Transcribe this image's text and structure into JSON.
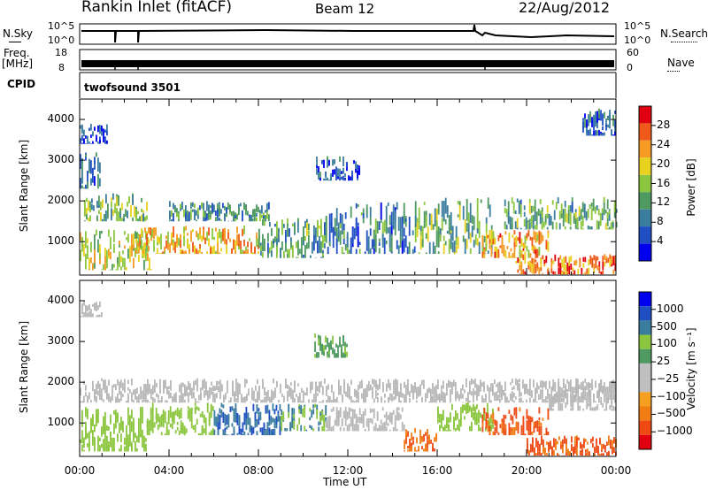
{
  "header": {
    "station": "Rankin Inlet (fitACF)",
    "beam": "Beam 12",
    "date": "22/Aug/2012"
  },
  "status_panels": {
    "nsky": {
      "label": "N.Sky",
      "ticks": [
        "10^5",
        "10^0"
      ]
    },
    "nsearch": {
      "label": "N.Search",
      "ticks": [
        "10^5",
        "10^0"
      ]
    },
    "freq": {
      "label_line1": "Freq.",
      "label_line2": "[MHz]",
      "ticks": [
        "18",
        "8"
      ]
    },
    "nave": {
      "label": "Nave",
      "ticks": [
        "60",
        "0"
      ]
    },
    "cpid": {
      "label": "CPID",
      "value": "twofsound 3501"
    }
  },
  "colors": {
    "power_scale": [
      "#0000ee",
      "#1f4fc2",
      "#3b7d9e",
      "#4f9a60",
      "#8cc63f",
      "#e8d21f",
      "#f59a23",
      "#ef5a1a",
      "#e0000f"
    ],
    "velocity_scale": [
      "#e00010",
      "#ef4a14",
      "#f27d14",
      "#f5a020",
      "#bfbfbf",
      "#bfbfbf",
      "#4f9a60",
      "#8cc63f",
      "#3b7d9e",
      "#1f4fc2",
      "#0000ee"
    ],
    "ground_scatter": "#b8b8b8"
  },
  "chart_data": [
    {
      "type": "heatmap",
      "name": "power",
      "ylabel": "Slant Range [km]",
      "colorbar_label": "Power [dB]",
      "colorbar_ticks": [
        "28",
        "24",
        "20",
        "16",
        "12",
        "8",
        "4"
      ],
      "colorbar_range": [
        0,
        32
      ],
      "ylim": [
        180,
        4500
      ],
      "yticks": [
        "1000",
        "2000",
        "3000",
        "4000"
      ],
      "x_time_range_hours": [
        0,
        24
      ],
      "regions": [
        {
          "t0": 0.0,
          "t1": 3.2,
          "r0": 300,
          "r1": 1300,
          "v": 18
        },
        {
          "t0": 0.2,
          "t1": 3.0,
          "r0": 1500,
          "r1": 2200,
          "v": 14
        },
        {
          "t0": 0.0,
          "t1": 1.0,
          "r0": 2300,
          "r1": 3200,
          "v": 9
        },
        {
          "t0": 0.0,
          "t1": 1.2,
          "r0": 3400,
          "r1": 3900,
          "v": 5
        },
        {
          "t0": 2.5,
          "t1": 8.0,
          "r0": 700,
          "r1": 1400,
          "v": 22
        },
        {
          "t0": 4.0,
          "t1": 8.5,
          "r0": 1500,
          "r1": 2000,
          "v": 11
        },
        {
          "t0": 8.0,
          "t1": 11.0,
          "r0": 600,
          "r1": 1600,
          "v": 12
        },
        {
          "t0": 10.5,
          "t1": 12.5,
          "r0": 2500,
          "r1": 3100,
          "v": 6
        },
        {
          "t0": 11.0,
          "t1": 15.0,
          "r0": 700,
          "r1": 2000,
          "v": 9
        },
        {
          "t0": 15.0,
          "t1": 18.5,
          "r0": 700,
          "r1": 2100,
          "v": 14
        },
        {
          "t0": 18.0,
          "t1": 21.0,
          "r0": 600,
          "r1": 1300,
          "v": 23
        },
        {
          "t0": 19.5,
          "t1": 24.0,
          "r0": 200,
          "r1": 700,
          "v": 25
        },
        {
          "t0": 19.0,
          "t1": 24.0,
          "r0": 1300,
          "r1": 2100,
          "v": 13
        },
        {
          "t0": 22.5,
          "t1": 24.0,
          "r0": 3600,
          "r1": 4300,
          "v": 7
        }
      ]
    },
    {
      "type": "heatmap",
      "name": "velocity",
      "ylabel": "Slant Range [km]",
      "colorbar_label": "Velocity [m s⁻¹]",
      "colorbar_ticks": [
        "1000",
        "500",
        "100",
        "25",
        "−25",
        "−100",
        "−500",
        "−1000"
      ],
      "colorbar_range": [
        -1200,
        1200
      ],
      "ylim": [
        180,
        4500
      ],
      "yticks": [
        "1000",
        "2000",
        "3000",
        "4000"
      ],
      "xlabel": "Time UT",
      "xticks": [
        "00:00",
        "04:00",
        "08:00",
        "12:00",
        "16:00",
        "20:00",
        "00:00"
      ],
      "x_time_range_hours": [
        0,
        24
      ],
      "regions": [
        {
          "t0": 0.0,
          "t1": 3.0,
          "r0": 300,
          "r1": 1400,
          "v": 150,
          "gs": false
        },
        {
          "t0": 0.0,
          "t1": 24.0,
          "r0": 1500,
          "r1": 2100,
          "v": 0,
          "gs": true
        },
        {
          "t0": 3.0,
          "t1": 6.0,
          "r0": 700,
          "r1": 1500,
          "v": 250,
          "gs": false
        },
        {
          "t0": 6.0,
          "t1": 9.0,
          "r0": 700,
          "r1": 1500,
          "v": 900,
          "gs": false
        },
        {
          "t0": 9.0,
          "t1": 11.0,
          "r0": 800,
          "r1": 1500,
          "v": 500,
          "gs": false
        },
        {
          "t0": 10.5,
          "t1": 12.0,
          "r0": 2600,
          "r1": 3200,
          "v": 80,
          "gs": false
        },
        {
          "t0": 11.0,
          "t1": 14.5,
          "r0": 800,
          "r1": 1400,
          "v": 0,
          "gs": true
        },
        {
          "t0": 14.5,
          "t1": 16.0,
          "r0": 300,
          "r1": 900,
          "v": -450,
          "gs": false
        },
        {
          "t0": 16.0,
          "t1": 18.5,
          "r0": 800,
          "r1": 1500,
          "v": 300,
          "gs": false
        },
        {
          "t0": 18.0,
          "t1": 21.0,
          "r0": 700,
          "r1": 1400,
          "v": -600,
          "gs": false
        },
        {
          "t0": 20.0,
          "t1": 24.0,
          "r0": 200,
          "r1": 700,
          "v": -550,
          "gs": false
        },
        {
          "t0": 21.0,
          "t1": 24.0,
          "r0": 1300,
          "r1": 2100,
          "v": 0,
          "gs": true
        },
        {
          "t0": 0.0,
          "t1": 1.0,
          "r0": 3600,
          "r1": 4000,
          "v": 0,
          "gs": true
        }
      ]
    }
  ]
}
